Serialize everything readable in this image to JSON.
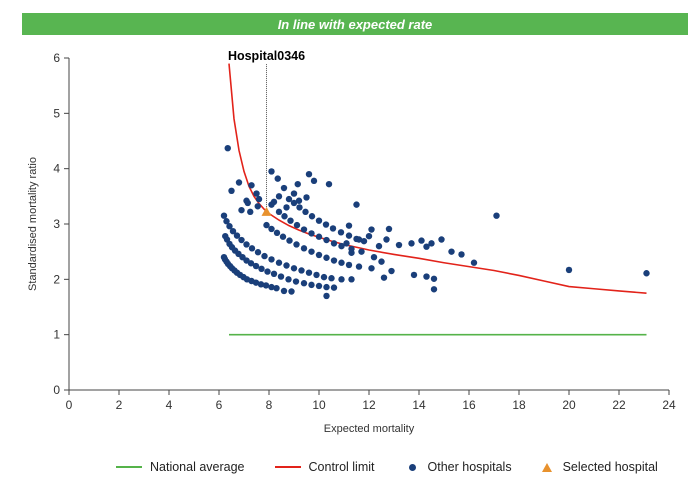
{
  "banner": {
    "text": "In line with expected rate",
    "color": "#58b551"
  },
  "chart_data": {
    "type": "scatter",
    "xlabel": "Expected mortality",
    "ylabel": "Standardised mortality ratio",
    "xlim": [
      0,
      24
    ],
    "ylim": [
      0,
      6
    ],
    "xticks": [
      0,
      2,
      4,
      6,
      8,
      10,
      12,
      14,
      16,
      18,
      20,
      22,
      24
    ],
    "yticks": [
      0,
      1,
      2,
      3,
      4,
      5,
      6
    ],
    "grid": false,
    "legend_position": "bottom",
    "selected_label": "Hospital0346",
    "series": [
      {
        "name": "National average",
        "kind": "line",
        "color": "#55b34a",
        "x": [
          6.4,
          23.1
        ],
        "y": [
          1.0,
          1.0
        ]
      },
      {
        "name": "Control limit",
        "kind": "line",
        "color": "#e2231a",
        "x": [
          6.4,
          6.6,
          6.8,
          7.0,
          7.2,
          7.4,
          7.6,
          7.8,
          8.0,
          8.4,
          8.8,
          9.2,
          9.6,
          10.0,
          10.5,
          11.0,
          11.5,
          12.0,
          13.0,
          14.0,
          15.0,
          16.0,
          17.0,
          18.0,
          19.0,
          20.0,
          21.0,
          22.0,
          23.1
        ],
        "y": [
          5.9,
          4.9,
          4.33,
          3.95,
          3.68,
          3.5,
          3.37,
          3.27,
          3.19,
          3.07,
          2.97,
          2.89,
          2.82,
          2.76,
          2.69,
          2.63,
          2.58,
          2.53,
          2.45,
          2.38,
          2.3,
          2.23,
          2.16,
          2.07,
          1.97,
          1.87,
          1.83,
          1.79,
          1.75
        ]
      },
      {
        "name": "Other hospitals",
        "kind": "points",
        "color": "#1a3f7a",
        "points": [
          [
            6.2,
            2.4
          ],
          [
            6.24,
            2.36
          ],
          [
            6.3,
            2.32
          ],
          [
            6.36,
            2.28
          ],
          [
            6.44,
            2.24
          ],
          [
            6.52,
            2.2
          ],
          [
            6.62,
            2.16
          ],
          [
            6.72,
            2.12
          ],
          [
            6.84,
            2.08
          ],
          [
            6.98,
            2.04
          ],
          [
            7.12,
            2.0
          ],
          [
            7.3,
            1.97
          ],
          [
            7.48,
            1.94
          ],
          [
            7.68,
            1.91
          ],
          [
            7.88,
            1.89
          ],
          [
            8.1,
            1.86
          ],
          [
            8.3,
            1.84
          ],
          [
            8.6,
            1.79
          ],
          [
            8.9,
            1.78
          ],
          [
            6.25,
            2.78
          ],
          [
            6.32,
            2.72
          ],
          [
            6.42,
            2.64
          ],
          [
            6.52,
            2.58
          ],
          [
            6.64,
            2.52
          ],
          [
            6.78,
            2.46
          ],
          [
            6.94,
            2.4
          ],
          [
            7.1,
            2.34
          ],
          [
            7.28,
            2.29
          ],
          [
            7.48,
            2.24
          ],
          [
            7.7,
            2.19
          ],
          [
            7.94,
            2.14
          ],
          [
            8.2,
            2.1
          ],
          [
            8.48,
            2.05
          ],
          [
            8.78,
            2.0
          ],
          [
            9.08,
            1.96
          ],
          [
            9.4,
            1.93
          ],
          [
            9.7,
            1.9
          ],
          [
            10.0,
            1.88
          ],
          [
            10.3,
            1.86
          ],
          [
            10.6,
            1.85
          ],
          [
            6.2,
            3.15
          ],
          [
            6.3,
            3.05
          ],
          [
            6.42,
            2.96
          ],
          [
            6.56,
            2.87
          ],
          [
            6.72,
            2.79
          ],
          [
            6.9,
            2.71
          ],
          [
            7.1,
            2.63
          ],
          [
            7.32,
            2.56
          ],
          [
            7.56,
            2.49
          ],
          [
            7.82,
            2.42
          ],
          [
            8.1,
            2.36
          ],
          [
            8.4,
            2.3
          ],
          [
            8.7,
            2.25
          ],
          [
            9.0,
            2.2
          ],
          [
            9.3,
            2.16
          ],
          [
            9.6,
            2.12
          ],
          [
            9.9,
            2.08
          ],
          [
            10.2,
            2.04
          ],
          [
            10.5,
            2.02
          ],
          [
            7.9,
            2.98
          ],
          [
            8.1,
            2.91
          ],
          [
            8.32,
            2.84
          ],
          [
            8.56,
            2.77
          ],
          [
            8.82,
            2.7
          ],
          [
            9.1,
            2.63
          ],
          [
            9.4,
            2.56
          ],
          [
            9.7,
            2.5
          ],
          [
            10.0,
            2.44
          ],
          [
            10.3,
            2.39
          ],
          [
            10.6,
            2.34
          ],
          [
            10.9,
            2.3
          ],
          [
            11.2,
            2.26
          ],
          [
            8.4,
            3.22
          ],
          [
            8.62,
            3.14
          ],
          [
            8.86,
            3.06
          ],
          [
            9.12,
            2.98
          ],
          [
            9.4,
            2.9
          ],
          [
            9.7,
            2.83
          ],
          [
            10.0,
            2.77
          ],
          [
            10.3,
            2.71
          ],
          [
            10.6,
            2.65
          ],
          [
            10.9,
            2.6
          ],
          [
            11.3,
            2.55
          ],
          [
            11.7,
            2.5
          ],
          [
            8.8,
            3.45
          ],
          [
            9.0,
            3.38
          ],
          [
            9.22,
            3.3
          ],
          [
            9.46,
            3.22
          ],
          [
            9.72,
            3.14
          ],
          [
            10.0,
            3.06
          ],
          [
            10.28,
            2.99
          ],
          [
            10.56,
            2.92
          ],
          [
            10.88,
            2.85
          ],
          [
            11.2,
            2.79
          ],
          [
            11.5,
            2.73
          ],
          [
            11.8,
            2.69
          ],
          [
            6.35,
            4.37
          ],
          [
            6.8,
            3.75
          ],
          [
            7.3,
            3.7
          ],
          [
            6.5,
            3.6
          ],
          [
            7.5,
            3.55
          ],
          [
            7.1,
            3.42
          ],
          [
            7.15,
            3.38
          ],
          [
            7.6,
            3.45
          ],
          [
            7.55,
            3.32
          ],
          [
            6.9,
            3.25
          ],
          [
            7.25,
            3.22
          ],
          [
            8.1,
            3.95
          ],
          [
            8.35,
            3.82
          ],
          [
            8.6,
            3.65
          ],
          [
            8.4,
            3.5
          ],
          [
            8.2,
            3.4
          ],
          [
            8.1,
            3.35
          ],
          [
            8.7,
            3.3
          ],
          [
            9.0,
            3.55
          ],
          [
            9.15,
            3.72
          ],
          [
            9.6,
            3.9
          ],
          [
            9.8,
            3.78
          ],
          [
            10.4,
            3.72
          ],
          [
            9.2,
            3.42
          ],
          [
            9.5,
            3.48
          ],
          [
            11.2,
            2.97
          ],
          [
            11.5,
            3.35
          ],
          [
            12.1,
            2.9
          ],
          [
            12.8,
            2.91
          ],
          [
            13.2,
            2.62
          ],
          [
            11.6,
            2.72
          ],
          [
            12.0,
            2.78
          ],
          [
            12.7,
            2.72
          ],
          [
            11.1,
            2.65
          ],
          [
            12.4,
            2.6
          ],
          [
            11.3,
            2.48
          ],
          [
            12.2,
            2.4
          ],
          [
            12.5,
            2.32
          ],
          [
            11.6,
            2.23
          ],
          [
            12.1,
            2.2
          ],
          [
            11.3,
            2.0
          ],
          [
            12.6,
            2.03
          ],
          [
            10.9,
            2.0
          ],
          [
            10.3,
            1.7
          ],
          [
            12.9,
            2.15
          ],
          [
            13.7,
            2.65
          ],
          [
            14.1,
            2.7
          ],
          [
            14.5,
            2.65
          ],
          [
            14.3,
            2.59
          ],
          [
            14.9,
            2.72
          ],
          [
            15.3,
            2.5
          ],
          [
            15.7,
            2.45
          ],
          [
            16.2,
            2.3
          ],
          [
            13.8,
            2.08
          ],
          [
            14.3,
            2.05
          ],
          [
            14.6,
            2.01
          ],
          [
            14.6,
            1.82
          ],
          [
            17.1,
            3.15
          ],
          [
            20.0,
            2.17
          ],
          [
            23.1,
            2.11
          ]
        ]
      },
      {
        "name": "Selected hospital",
        "kind": "points",
        "color": "#e8922e",
        "points": [
          [
            7.9,
            3.22
          ]
        ]
      }
    ]
  }
}
